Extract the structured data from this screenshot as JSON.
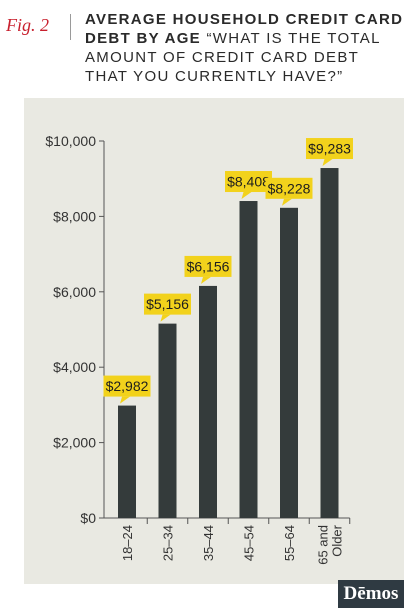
{
  "figure": {
    "label": "Fig. 2",
    "title_bold": "AVERAGE HOUSEHOLD CREDIT CARD DEBT BY AGE",
    "title_rest": "“WHAT IS THE TOTAL AMOUNT OF CREDIT CARD DEBT THAT YOU CURRENTLY HAVE?”"
  },
  "logo": {
    "text": "Dēmos"
  },
  "chart_data": {
    "type": "bar",
    "title": "AVERAGE HOUSEHOLD CREDIT CARD DEBT BY AGE “WHAT IS THE TOTAL AMOUNT OF CREDIT CARD DEBT THAT YOU CURRENTLY HAVE?”",
    "categories": [
      "18–24",
      "25–34",
      "35–44",
      "45–54",
      "55–64",
      "65 and Older"
    ],
    "values": [
      2982,
      5156,
      6156,
      8408,
      8228,
      9283
    ],
    "data_labels": [
      "$2,982",
      "$5,156",
      "$6,156",
      "$8,408",
      "$8,228",
      "$9,283"
    ],
    "ylim": [
      0,
      10000
    ],
    "yticks": [
      0,
      2000,
      4000,
      6000,
      8000,
      10000
    ],
    "ytick_labels": [
      "$0",
      "$2,000",
      "$4,000",
      "$6,000",
      "$8,000",
      "$10,000"
    ],
    "xlabel": "",
    "ylabel": "",
    "grid": false,
    "legend": "none",
    "colors": {
      "bar": "#343b3b",
      "label_bg": "#f2d21c",
      "axis": "#555555",
      "panel_bg": "#e9e9e2"
    }
  }
}
